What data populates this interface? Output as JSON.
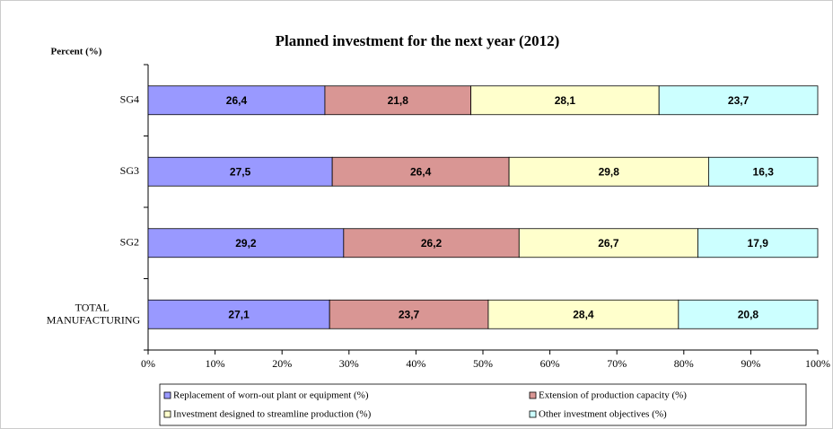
{
  "chart_data": {
    "type": "stacked_barh",
    "title": "Planned investment for the next year (2012)",
    "y_label": "Percent (%)",
    "categories": [
      "SG4",
      "SG3",
      "SG2",
      "TOTAL MANUFACTURING"
    ],
    "series": [
      {
        "name": "Replacement of worn-out plant or equipment (%)",
        "color": "#9999ff",
        "values": [
          26.4,
          27.5,
          29.2,
          27.1
        ],
        "value_labels": [
          "26,4",
          "27,5",
          "29,2",
          "27,1"
        ]
      },
      {
        "name": "Extension of production capacity (%)",
        "color": "#d99694",
        "values": [
          21.8,
          26.4,
          26.2,
          23.7
        ],
        "value_labels": [
          "21,8",
          "26,4",
          "26,2",
          "23,7"
        ]
      },
      {
        "name": "Investment designed to streamline production (%)",
        "color": "#ffffcc",
        "values": [
          28.1,
          29.8,
          26.7,
          28.4
        ],
        "value_labels": [
          "28,1",
          "29,8",
          "26,7",
          "28,4"
        ]
      },
      {
        "name": "Other investment objectives (%)",
        "color": "#ccffff",
        "values": [
          23.7,
          16.3,
          17.9,
          20.8
        ],
        "value_labels": [
          "23,7",
          "16,3",
          "17,9",
          "20,8"
        ]
      }
    ],
    "xlim": [
      0,
      100
    ],
    "xticks": [
      {
        "value": 0,
        "label": "0%"
      },
      {
        "value": 10,
        "label": "10%"
      },
      {
        "value": 20,
        "label": "20%"
      },
      {
        "value": 30,
        "label": "30%"
      },
      {
        "value": 40,
        "label": "40%"
      },
      {
        "value": 50,
        "label": "50%"
      },
      {
        "value": 60,
        "label": "60%"
      },
      {
        "value": 70,
        "label": "70%"
      },
      {
        "value": 80,
        "label": "80%"
      },
      {
        "value": 90,
        "label": "90%"
      },
      {
        "value": 100,
        "label": "100%"
      }
    ]
  }
}
